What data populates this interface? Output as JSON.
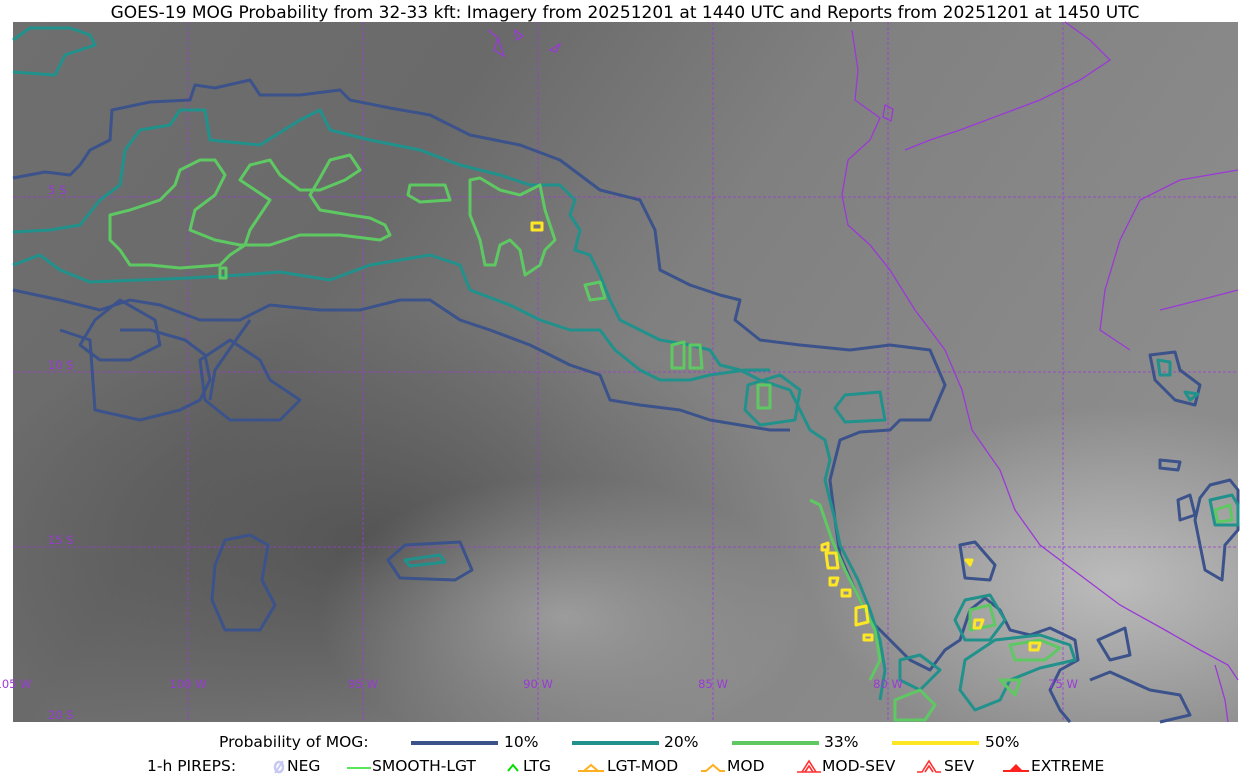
{
  "title": "GOES-19 MOG Probability from 32-33 kft: Imagery from 20251201 at 1440 UTC and Reports from 20251201 at 1450 UTC",
  "map": {
    "lon_labels": [
      "105 W",
      "100 W",
      "95 W",
      "90 W",
      "85 W",
      "80 W",
      "75 W"
    ],
    "lat_labels": [
      "5 S",
      "10 S",
      "15 S",
      "20 S"
    ],
    "gridline_color": "#9a3ad6",
    "coastline_color": "#9a3ad6"
  },
  "legend": {
    "probability_label": "Probability of MOG:",
    "levels": [
      {
        "label": "10%",
        "color": "#3b528b"
      },
      {
        "label": "20%",
        "color": "#21918c"
      },
      {
        "label": "33%",
        "color": "#5ec962"
      },
      {
        "label": "50%",
        "color": "#fde725"
      }
    ],
    "pireps_label": "1-h PIREPS:",
    "pireps": [
      {
        "label": "NEG",
        "icon": "neg-symbol",
        "color": "#c8c8f5"
      },
      {
        "label": "SMOOTH-LGT",
        "icon": "line-symbol",
        "color": "#22dd22"
      },
      {
        "label": "LTG",
        "icon": "caret-symbol",
        "color": "#00dd00"
      },
      {
        "label": "LGT-MOD",
        "icon": "caret-bar-symbol",
        "color": "#ffb020"
      },
      {
        "label": "MOD",
        "icon": "caret-symbol",
        "color": "#ffb020"
      },
      {
        "label": "MOD-SEV",
        "icon": "double-caret-symbol",
        "color": "#ff3030"
      },
      {
        "label": "SEV",
        "icon": "double-caret-symbol",
        "color": "#ff3030"
      },
      {
        "label": "EXTREME",
        "icon": "filled-caret-symbol",
        "color": "#ff2020"
      }
    ]
  }
}
